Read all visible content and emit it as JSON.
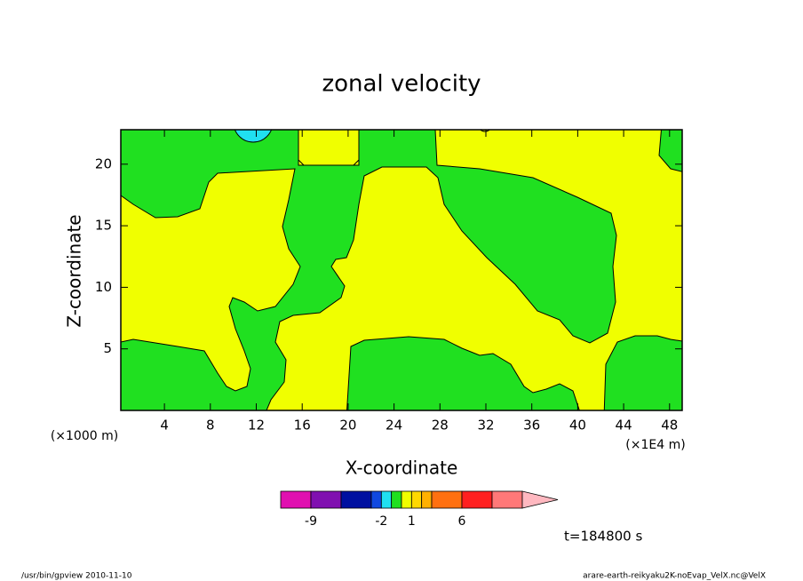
{
  "chart_data": {
    "type": "contour",
    "title": "zonal velocity",
    "x_label": "X-coordinate",
    "y_label": "Z-coordinate",
    "x_unit_label": "(×1000 m)",
    "x_factor_label": "(×1E4 m)",
    "time_label": "t=184800 s",
    "program_label": "/usr/bin/gpview  2010-11-10",
    "source_label": "arare-earth-reikyaku2K-noEvap_VelX.nc@VelX",
    "xlim": [
      0.2,
      49.1
    ],
    "xticks": [
      4,
      8,
      12,
      16,
      20,
      24,
      28,
      32,
      36,
      40,
      44,
      48
    ],
    "ylim": [
      0,
      22.8
    ],
    "yticks": [
      5,
      10,
      15,
      20
    ],
    "colorbar": {
      "levels": [
        -12,
        -9,
        -6,
        -3,
        -2,
        -1,
        0,
        1,
        2,
        3,
        6,
        9,
        12
      ],
      "colors": [
        "#e010b0",
        "#8010b0",
        "#0010a0",
        "#1048e0",
        "#20e0f0",
        "#20e020",
        "#f0ff00",
        "#ffd800",
        "#ffb000",
        "#ff7010",
        "#ff2020",
        "#ff7878",
        "#ffb8c0"
      ],
      "ticks": [
        -9,
        -2,
        1,
        6
      ]
    }
  }
}
